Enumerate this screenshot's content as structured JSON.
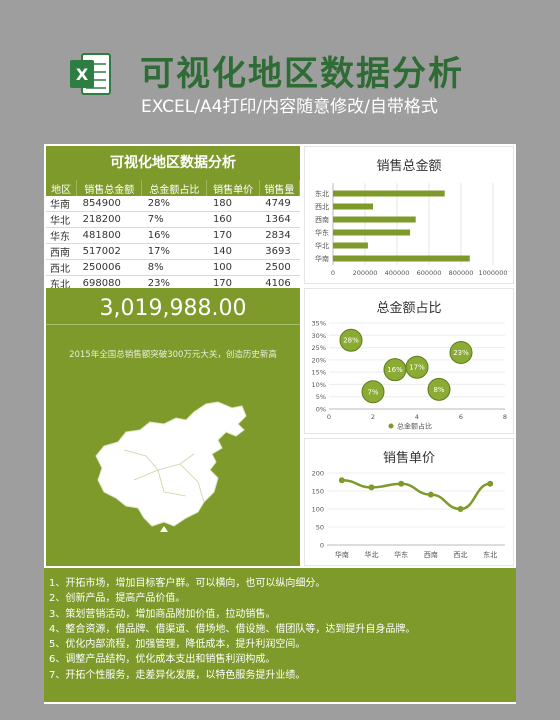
{
  "header": {
    "title": "可视化地区数据分析",
    "subtitle": "EXCEL/A4打印/内容随意修改/自带格式",
    "icon_label": "X"
  },
  "colors": {
    "accent": "#7e9a2b",
    "brand": "#2e6b35",
    "bubble": "#8aac35"
  },
  "table": {
    "title": "可视化地区数据分析",
    "headers": [
      "地区",
      "销售总金额",
      "总金额占比",
      "销售单价",
      "销售量"
    ],
    "rows": [
      [
        "华南",
        "854900",
        "28%",
        "180",
        "4749"
      ],
      [
        "华北",
        "218200",
        "7%",
        "160",
        "1364"
      ],
      [
        "华东",
        "481800",
        "16%",
        "170",
        "2834"
      ],
      [
        "西南",
        "517002",
        "17%",
        "140",
        "3693"
      ],
      [
        "西北",
        "250006",
        "8%",
        "100",
        "2500"
      ],
      [
        "东北",
        "698080",
        "23%",
        "170",
        "4106"
      ]
    ]
  },
  "total": {
    "value": "3,019,988.00",
    "note": "2015年全国总销售额突破300万元大关，创造历史新高"
  },
  "chart_data": [
    {
      "type": "bar",
      "title": "销售总金额",
      "categories": [
        "东北",
        "西北",
        "西南",
        "华东",
        "华北",
        "华南"
      ],
      "values": [
        698080,
        250006,
        517002,
        481800,
        218200,
        854900
      ],
      "xlim": [
        0,
        1000000
      ],
      "xticks": [
        "0",
        "200000",
        "400000",
        "600000",
        "800000",
        "1000000"
      ]
    },
    {
      "type": "scatter",
      "title": "总金额占比",
      "points": [
        {
          "x": 1,
          "y": 0.28,
          "label": "28%"
        },
        {
          "x": 2,
          "y": 0.07,
          "label": "7%"
        },
        {
          "x": 3,
          "y": 0.16,
          "label": "16%"
        },
        {
          "x": 4,
          "y": 0.17,
          "label": "17%"
        },
        {
          "x": 5,
          "y": 0.08,
          "label": "8%"
        },
        {
          "x": 6,
          "y": 0.23,
          "label": "23%"
        }
      ],
      "xlim": [
        0,
        8
      ],
      "ylim": [
        0,
        0.35
      ],
      "xticks": [
        "0",
        "2",
        "4",
        "6",
        "8"
      ],
      "yticks": [
        "0%",
        "5%",
        "10%",
        "15%",
        "20%",
        "25%",
        "30%",
        "35%"
      ],
      "legend": "总金额占比"
    },
    {
      "type": "line",
      "title": "销售单价",
      "categories": [
        "华南",
        "华北",
        "华东",
        "西南",
        "西北",
        "东北"
      ],
      "values": [
        180,
        160,
        170,
        140,
        100,
        170
      ],
      "ylim": [
        0,
        200
      ],
      "yticks": [
        "0",
        "50",
        "100",
        "150",
        "200"
      ]
    }
  ],
  "tips": [
    "1、开拓市场，增加目标客户群。可以横向，也可以纵向细分。",
    "2、创新产品，提高产品价值。",
    "3、策划营销活动，增加商品附加价值，拉动销售。",
    "4、整合资源，借品牌、借渠道、借场地、借设施、借团队等，达到提升自身品牌。",
    "5、优化内部流程，加强管理，降低成本，提升利润空间。",
    "6、调整产品结构，优化成本支出和销售利润构成。",
    "7、开拓个性服务，走差异化发展，以特色服务提升业绩。"
  ]
}
